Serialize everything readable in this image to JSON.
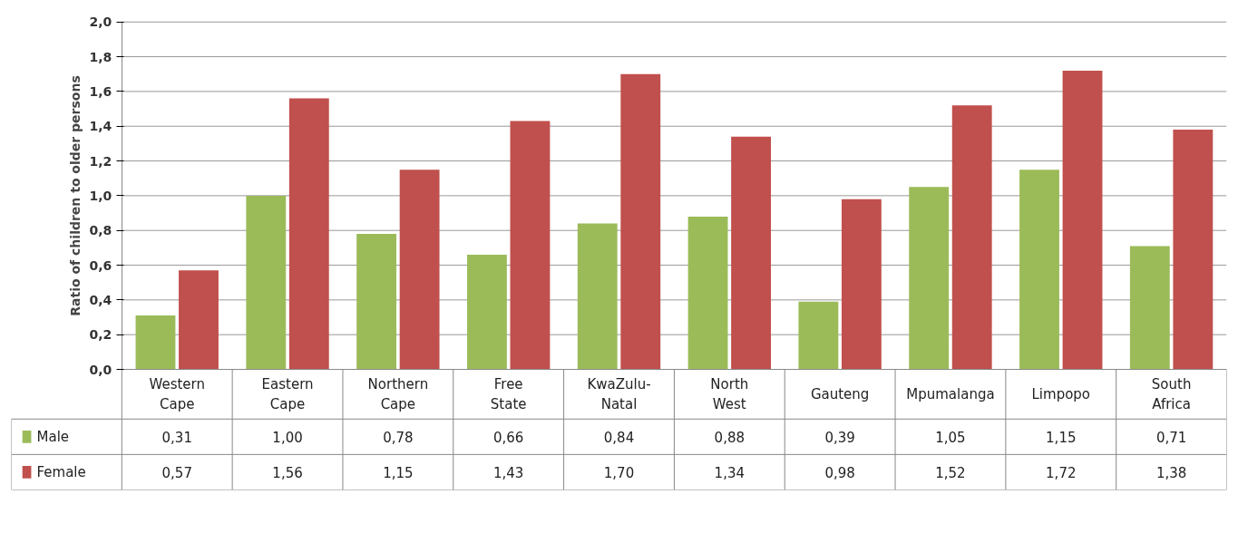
{
  "chart_data": {
    "type": "bar",
    "ylabel": "Ratio of children to older persons",
    "categories": [
      "Western Cape",
      "Eastern Cape",
      "Northern Cape",
      "Free State",
      "KwaZulu-Natal",
      "North West",
      "Gauteng",
      "Mpumalanga",
      "Limpopo",
      "South Africa"
    ],
    "series": [
      {
        "name": "Male",
        "color": "#9bbb59",
        "values": [
          0.31,
          1.0,
          0.78,
          0.66,
          0.84,
          0.88,
          0.39,
          1.05,
          1.15,
          0.71
        ],
        "value_labels": [
          "0,31",
          "1,00",
          "0,78",
          "0,66",
          "0,84",
          "0,88",
          "0,39",
          "1,05",
          "1,15",
          "0,71"
        ]
      },
      {
        "name": "Female",
        "color": "#c0504d",
        "values": [
          0.57,
          1.56,
          1.15,
          1.43,
          1.7,
          1.34,
          0.98,
          1.52,
          1.72,
          1.38
        ],
        "value_labels": [
          "0,57",
          "1,56",
          "1,15",
          "1,43",
          "1,70",
          "1,34",
          "0,98",
          "1,52",
          "1,72",
          "1,38"
        ]
      }
    ],
    "ylim": [
      0,
      2.0
    ],
    "yticks": [
      {
        "value": 0,
        "label": "0,0"
      },
      {
        "value": 0.2,
        "label": "0,2"
      },
      {
        "value": 0.4,
        "label": "0,4"
      },
      {
        "value": 0.6,
        "label": "0,6"
      },
      {
        "value": 0.8,
        "label": "0,8"
      },
      {
        "value": 1.0,
        "label": "1,0"
      },
      {
        "value": 1.2,
        "label": "1,2"
      },
      {
        "value": 1.4,
        "label": "1,4"
      },
      {
        "value": 1.6,
        "label": "1,6"
      },
      {
        "value": 1.8,
        "label": "1,8"
      },
      {
        "value": 2.0,
        "label": "2,0"
      }
    ],
    "grid": "y",
    "legend": "bottom"
  }
}
